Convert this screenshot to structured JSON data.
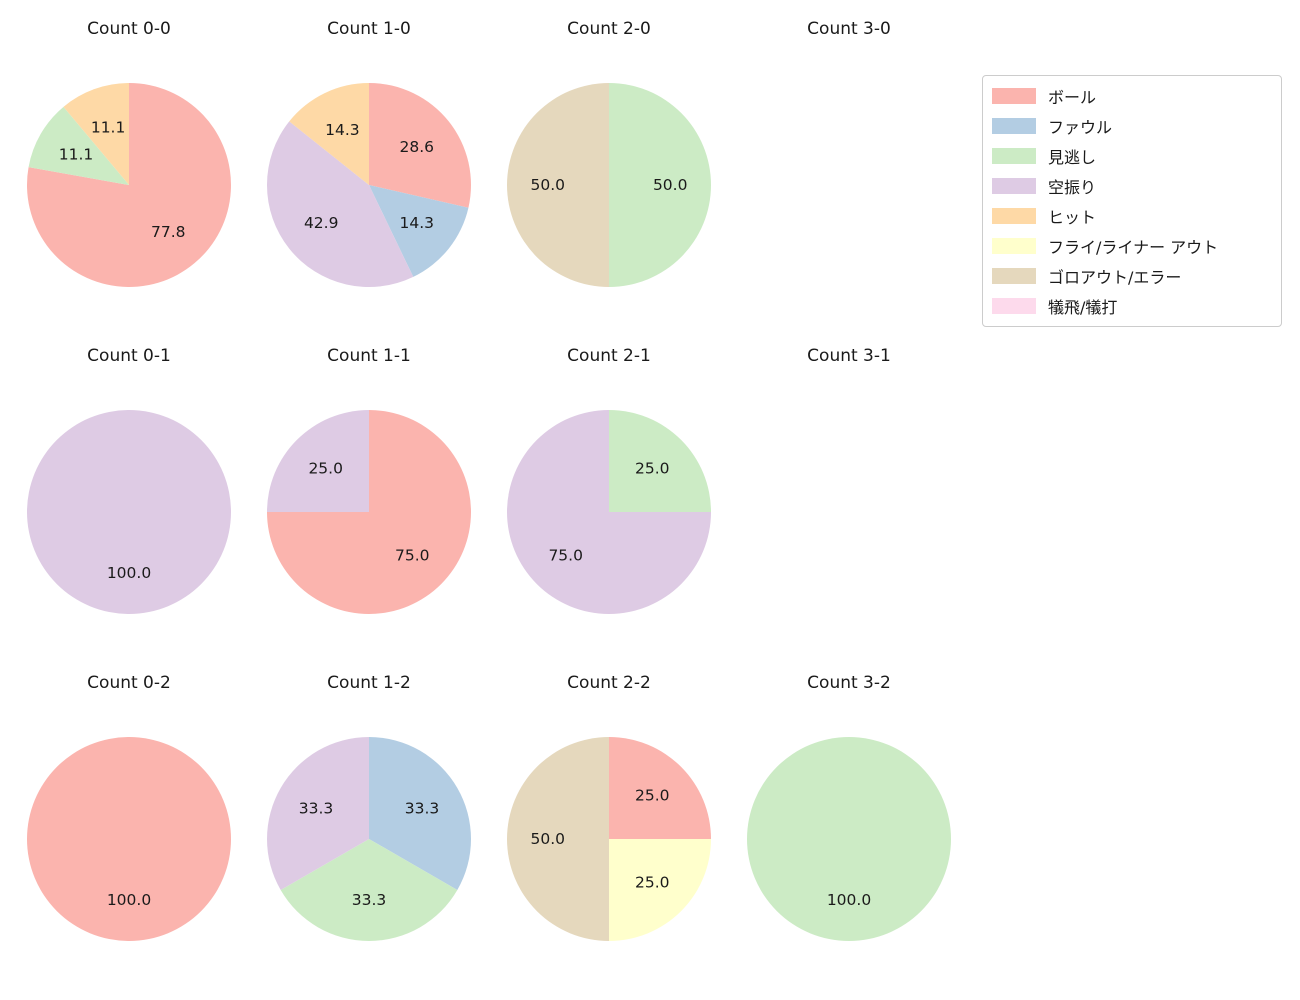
{
  "figure": {
    "background": "#ffffff",
    "text_color": "#1a1a1a"
  },
  "legend": {
    "position": "upper-right",
    "items": [
      {
        "label": "ボール",
        "color": "#fbb4ae"
      },
      {
        "label": "ファウル",
        "color": "#b3cde3"
      },
      {
        "label": "見逃し",
        "color": "#ccebc5"
      },
      {
        "label": "空振り",
        "color": "#decbe4"
      },
      {
        "label": "ヒット",
        "color": "#fed9a6"
      },
      {
        "label": "フライ/ライナー アウト",
        "color": "#ffffcc"
      },
      {
        "label": "ゴロアウト/エラー",
        "color": "#e5d8bd"
      },
      {
        "label": "犠飛/犠打",
        "color": "#fddaec"
      }
    ]
  },
  "chart_data": [
    {
      "type": "pie",
      "title": "Count 0-0",
      "start_angle": 90,
      "counterclockwise": false,
      "slices": [
        {
          "label": "ボール",
          "value": 77.8,
          "pct_label": "77.8"
        },
        {
          "label": "見逃し",
          "value": 11.1,
          "pct_label": "11.1"
        },
        {
          "label": "ヒット",
          "value": 11.1,
          "pct_label": "11.1"
        }
      ]
    },
    {
      "type": "pie",
      "title": "Count 1-0",
      "start_angle": 90,
      "counterclockwise": false,
      "slices": [
        {
          "label": "ボール",
          "value": 28.6,
          "pct_label": "28.6"
        },
        {
          "label": "ファウル",
          "value": 14.3,
          "pct_label": "14.3"
        },
        {
          "label": "空振り",
          "value": 42.9,
          "pct_label": "42.9"
        },
        {
          "label": "ヒット",
          "value": 14.3,
          "pct_label": "14.3"
        }
      ]
    },
    {
      "type": "pie",
      "title": "Count 2-0",
      "start_angle": 90,
      "counterclockwise": false,
      "slices": [
        {
          "label": "見逃し",
          "value": 50.0,
          "pct_label": "50.0"
        },
        {
          "label": "ゴロアウト/エラー",
          "value": 50.0,
          "pct_label": "50.0"
        }
      ]
    },
    {
      "type": "pie",
      "title": "Count 3-0",
      "start_angle": 90,
      "counterclockwise": false,
      "slices": []
    },
    {
      "type": "pie",
      "title": "Count 0-1",
      "start_angle": 90,
      "counterclockwise": false,
      "slices": [
        {
          "label": "空振り",
          "value": 100.0,
          "pct_label": "100.0"
        }
      ]
    },
    {
      "type": "pie",
      "title": "Count 1-1",
      "start_angle": 90,
      "counterclockwise": false,
      "slices": [
        {
          "label": "ボール",
          "value": 75.0,
          "pct_label": "75.0"
        },
        {
          "label": "空振り",
          "value": 25.0,
          "pct_label": "25.0"
        }
      ]
    },
    {
      "type": "pie",
      "title": "Count 2-1",
      "start_angle": 90,
      "counterclockwise": false,
      "slices": [
        {
          "label": "見逃し",
          "value": 25.0,
          "pct_label": "25.0"
        },
        {
          "label": "空振り",
          "value": 75.0,
          "pct_label": "75.0"
        }
      ]
    },
    {
      "type": "pie",
      "title": "Count 3-1",
      "start_angle": 90,
      "counterclockwise": false,
      "slices": []
    },
    {
      "type": "pie",
      "title": "Count 0-2",
      "start_angle": 90,
      "counterclockwise": false,
      "slices": [
        {
          "label": "ボール",
          "value": 100.0,
          "pct_label": "100.0"
        }
      ]
    },
    {
      "type": "pie",
      "title": "Count 1-2",
      "start_angle": 90,
      "counterclockwise": false,
      "slices": [
        {
          "label": "ファウル",
          "value": 33.3,
          "pct_label": "33.3"
        },
        {
          "label": "見逃し",
          "value": 33.3,
          "pct_label": "33.3"
        },
        {
          "label": "空振り",
          "value": 33.3,
          "pct_label": "33.3"
        }
      ]
    },
    {
      "type": "pie",
      "title": "Count 2-2",
      "start_angle": 90,
      "counterclockwise": false,
      "slices": [
        {
          "label": "ボール",
          "value": 25.0,
          "pct_label": "25.0"
        },
        {
          "label": "フライ/ライナー アウト",
          "value": 25.0,
          "pct_label": "25.0"
        },
        {
          "label": "ゴロアウト/エラー",
          "value": 50.0,
          "pct_label": "50.0"
        }
      ]
    },
    {
      "type": "pie",
      "title": "Count 3-2",
      "start_angle": 90,
      "counterclockwise": false,
      "slices": [
        {
          "label": "見逃し",
          "value": 100.0,
          "pct_label": "100.0"
        }
      ]
    }
  ]
}
